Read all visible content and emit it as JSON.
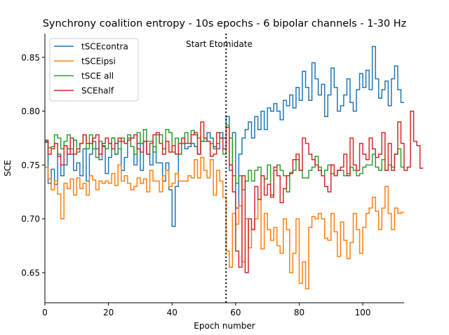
{
  "chart_data": {
    "type": "line",
    "step": true,
    "title": "Synchrony coalition entropy  - 10s epochs - 6 bipolar channels - 1-30 Hz",
    "xlabel": "Epoch number",
    "ylabel": "SCE",
    "xlim": [
      0,
      113
    ],
    "ylim": [
      0.622,
      0.872
    ],
    "xticks": [
      0,
      20,
      40,
      60,
      80,
      100
    ],
    "yticks": [
      0.65,
      0.7,
      0.75,
      0.8,
      0.85
    ],
    "ytick_labels": [
      "0.65",
      "0.70",
      "0.75",
      "0.80",
      "0.85"
    ],
    "grid": false,
    "legend_position": "top-left",
    "annotation": {
      "text": "Start Etomidate",
      "x": 57
    },
    "vline": {
      "x": 57,
      "style": "dotted",
      "color": "#000000"
    },
    "series": [
      {
        "name": "tSCEcontra",
        "color": "#1f77b4",
        "values": [
          0.771,
          0.733,
          0.746,
          0.732,
          0.76,
          0.74,
          0.75,
          0.765,
          0.76,
          0.745,
          0.752,
          0.74,
          0.765,
          0.735,
          0.76,
          0.772,
          0.765,
          0.755,
          0.767,
          0.742,
          0.757,
          0.775,
          0.76,
          0.772,
          0.745,
          0.757,
          0.775,
          0.767,
          0.75,
          0.77,
          0.745,
          0.772,
          0.76,
          0.75,
          0.767,
          0.752,
          0.752,
          0.735,
          0.752,
          0.727,
          0.693,
          0.73,
          0.76,
          0.77,
          0.765,
          0.767,
          0.77,
          0.767,
          0.76,
          0.772,
          0.772,
          0.78,
          0.775,
          0.767,
          0.765,
          0.78,
          0.775,
          0.795,
          0.745,
          0.78,
          0.71,
          0.76,
          0.775,
          0.783,
          0.79,
          0.775,
          0.795,
          0.783,
          0.8,
          0.783,
          0.803,
          0.8,
          0.807,
          0.8,
          0.792,
          0.81,
          0.805,
          0.815,
          0.803,
          0.822,
          0.81,
          0.837,
          0.822,
          0.81,
          0.845,
          0.83,
          0.815,
          0.825,
          0.795,
          0.815,
          0.84,
          0.822,
          0.8,
          0.805,
          0.815,
          0.83,
          0.808,
          0.8,
          0.82,
          0.835,
          0.822,
          0.838,
          0.82,
          0.86,
          0.83,
          0.812,
          0.82,
          0.828,
          0.805,
          0.83,
          0.842,
          0.82,
          0.808
        ]
      },
      {
        "name": "tSCEipsi",
        "color": "#ff7f0e",
        "values": [
          0.748,
          0.737,
          0.727,
          0.735,
          0.723,
          0.7,
          0.733,
          0.728,
          0.737,
          0.722,
          0.738,
          0.728,
          0.733,
          0.722,
          0.74,
          0.736,
          0.727,
          0.735,
          0.733,
          0.735,
          0.733,
          0.742,
          0.731,
          0.75,
          0.735,
          0.74,
          0.733,
          0.727,
          0.73,
          0.738,
          0.733,
          0.737,
          0.725,
          0.745,
          0.735,
          0.735,
          0.725,
          0.74,
          0.745,
          0.73,
          0.733,
          0.742,
          0.735,
          0.735,
          0.735,
          0.74,
          0.738,
          0.755,
          0.738,
          0.757,
          0.745,
          0.738,
          0.755,
          0.722,
          0.745,
          0.735,
          0.72,
          0.67,
          0.655,
          0.705,
          0.695,
          0.712,
          0.66,
          0.7,
          0.673,
          0.69,
          0.7,
          0.718,
          0.672,
          0.705,
          0.69,
          0.68,
          0.692,
          0.675,
          0.668,
          0.7,
          0.69,
          0.65,
          0.668,
          0.7,
          0.64,
          0.66,
          0.635,
          0.692,
          0.702,
          0.7,
          0.705,
          0.7,
          0.682,
          0.68,
          0.705,
          0.688,
          0.665,
          0.697,
          0.68,
          0.663,
          0.678,
          0.705,
          0.69,
          0.668,
          0.692,
          0.705,
          0.71,
          0.72,
          0.707,
          0.69,
          0.71,
          0.73,
          0.705,
          0.69,
          0.71,
          0.705,
          0.706
        ]
      },
      {
        "name": "tSCE all",
        "color": "#2ca02c",
        "values": [
          0.772,
          0.766,
          0.767,
          0.778,
          0.775,
          0.765,
          0.772,
          0.778,
          0.765,
          0.773,
          0.762,
          0.77,
          0.778,
          0.765,
          0.778,
          0.765,
          0.757,
          0.772,
          0.768,
          0.765,
          0.77,
          0.775,
          0.76,
          0.765,
          0.775,
          0.77,
          0.778,
          0.767,
          0.76,
          0.78,
          0.77,
          0.783,
          0.772,
          0.772,
          0.762,
          0.778,
          0.778,
          0.765,
          0.783,
          0.78,
          0.762,
          0.775,
          0.76,
          0.77,
          0.78,
          0.77,
          0.782,
          0.778,
          0.775,
          0.772,
          0.775,
          0.772,
          0.77,
          0.765,
          0.77,
          0.775,
          0.76,
          0.787,
          0.775,
          0.74,
          0.733,
          0.74,
          0.727,
          0.735,
          0.745,
          0.735,
          0.745,
          0.748,
          0.74,
          0.737,
          0.75,
          0.722,
          0.745,
          0.75,
          0.745,
          0.74,
          0.725,
          0.743,
          0.745,
          0.755,
          0.745,
          0.738,
          0.738,
          0.745,
          0.748,
          0.758,
          0.748,
          0.74,
          0.745,
          0.75,
          0.742,
          0.74,
          0.745,
          0.745,
          0.74,
          0.742,
          0.748,
          0.745,
          0.74,
          0.742,
          0.748,
          0.75,
          0.75,
          0.76,
          0.748,
          0.745,
          0.755,
          0.745,
          0.75,
          0.748,
          0.76,
          0.765,
          0.748
        ]
      },
      {
        "name": "SCEhalf",
        "color": "#d62728",
        "values": [
          0.773,
          0.76,
          0.765,
          0.77,
          0.758,
          0.75,
          0.768,
          0.76,
          0.775,
          0.76,
          0.765,
          0.77,
          0.778,
          0.77,
          0.77,
          0.775,
          0.778,
          0.76,
          0.77,
          0.775,
          0.77,
          0.765,
          0.77,
          0.775,
          0.772,
          0.77,
          0.773,
          0.775,
          0.778,
          0.765,
          0.762,
          0.772,
          0.76,
          0.77,
          0.778,
          0.78,
          0.77,
          0.76,
          0.772,
          0.762,
          0.768,
          0.76,
          0.77,
          0.775,
          0.77,
          0.77,
          0.778,
          0.78,
          0.76,
          0.79,
          0.775,
          0.772,
          0.758,
          0.76,
          0.78,
          0.775,
          0.765,
          0.785,
          0.75,
          0.725,
          0.67,
          0.655,
          0.74,
          0.65,
          0.7,
          0.69,
          0.73,
          0.718,
          0.74,
          0.722,
          0.732,
          0.72,
          0.748,
          0.74,
          0.715,
          0.728,
          0.74,
          0.742,
          0.755,
          0.76,
          0.745,
          0.775,
          0.77,
          0.76,
          0.755,
          0.75,
          0.745,
          0.74,
          0.73,
          0.725,
          0.75,
          0.74,
          0.745,
          0.748,
          0.76,
          0.74,
          0.775,
          0.75,
          0.745,
          0.77,
          0.76,
          0.755,
          0.775,
          0.765,
          0.757,
          0.76,
          0.78,
          0.745,
          0.77,
          0.745,
          0.76,
          0.79,
          0.77,
          0.745,
          0.748,
          0.8,
          0.772,
          0.768,
          0.747
        ]
      }
    ]
  }
}
